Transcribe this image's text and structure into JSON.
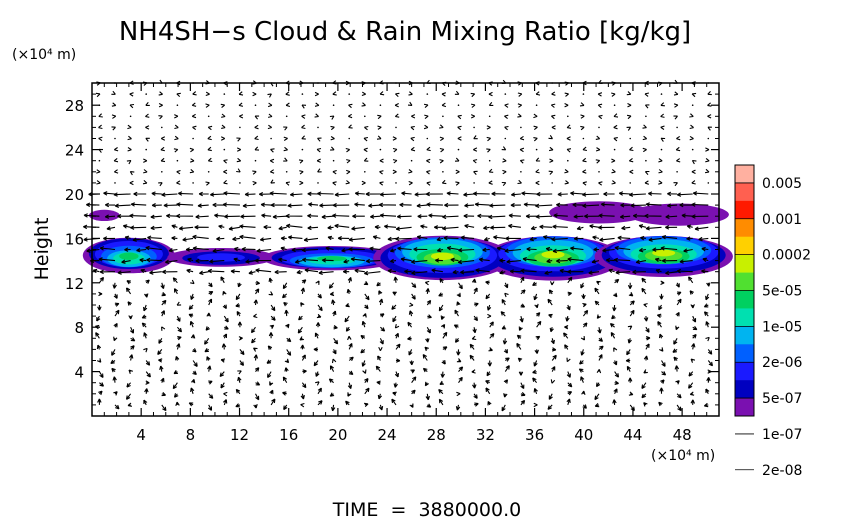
{
  "chart_data": {
    "type": "heatmap",
    "title": "NH4SH−s Cloud & Rain Mixing Ratio [kg/kg]",
    "ylabel": "Height",
    "y_unit": "(×10⁴ m)",
    "x_unit": "(×10⁴ m)",
    "xlim": [
      0,
      51
    ],
    "ylim": [
      0,
      30
    ],
    "xticks": [
      "4",
      "8",
      "12",
      "16",
      "20",
      "24",
      "28",
      "32",
      "36",
      "40",
      "44",
      "48"
    ],
    "xtick_values": [
      4,
      8,
      12,
      16,
      20,
      24,
      28,
      32,
      36,
      40,
      44,
      48
    ],
    "yticks": [
      "4",
      "8",
      "12",
      "16",
      "20",
      "24",
      "28"
    ],
    "ytick_values": [
      4,
      8,
      12,
      16,
      20,
      24,
      28
    ],
    "colorbar": {
      "labels": [
        "0.005",
        "0.001",
        "0.0002",
        "5e-05",
        "1e-05",
        "2e-06",
        "5e-07",
        "1e-07",
        "2e-08"
      ],
      "colors": [
        "#ffb0a0",
        "#ff6050",
        "#ff1a00",
        "#ff8c00",
        "#ffd000",
        "#c8f000",
        "#50e030",
        "#00d060",
        "#00e0b0",
        "#00b4f0",
        "#0060ff",
        "#1a1aff",
        "#0000c0",
        "#7a10b0"
      ]
    },
    "cloud_regions": [
      {
        "x": [
          0,
          6
        ],
        "y": [
          12.8,
          16.0
        ],
        "peak": "5e-05"
      },
      {
        "x": [
          7,
          14
        ],
        "y": [
          13.5,
          15.2
        ],
        "peak": "2e-06"
      },
      {
        "x": [
          15,
          24
        ],
        "y": [
          13.0,
          15.2
        ],
        "peak": "5e-05"
      },
      {
        "x": [
          24,
          42
        ],
        "y": [
          12.5,
          16.5
        ],
        "peak": "0.0002"
      },
      {
        "x": [
          38,
          51
        ],
        "y": [
          17.2,
          19.2
        ],
        "peak": "2e-08"
      },
      {
        "x": [
          42,
          51
        ],
        "y": [
          12.8,
          16.5
        ],
        "peak": "0.0002"
      },
      {
        "x": [
          0,
          2
        ],
        "y": [
          17.5,
          18.5
        ],
        "peak": "2e-08"
      }
    ],
    "footer": "TIME  =  3880000.0"
  }
}
